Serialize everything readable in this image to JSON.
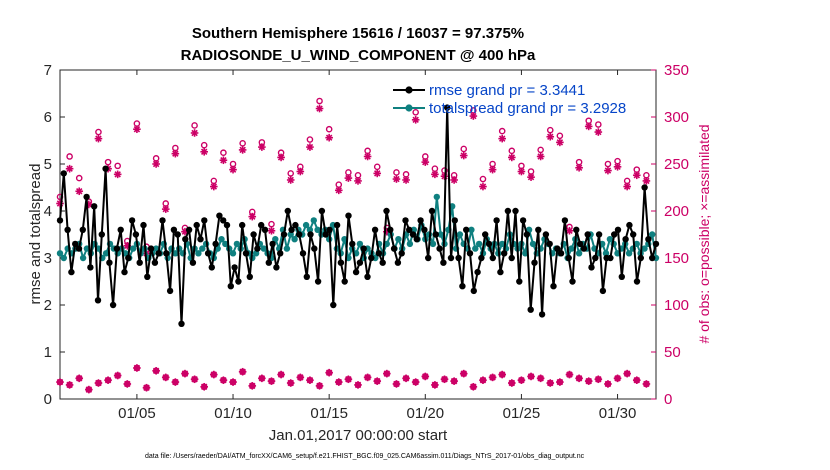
{
  "chart_data": {
    "type": "line",
    "title_line1": "Southern Hemisphere 15616 / 16037 = 97.375%",
    "title_line2": "RADIOSONDE_U_WIND_COMPONENT @ 400 hPa",
    "xlabel": "Jan.01,2017 00:00:00 start",
    "ylabel": "rmse and totalspread",
    "ylabel_right": "# of obs: o=possible; ×=assimilated",
    "x_range": [
      1.0,
      32.0
    ],
    "ylim": [
      0,
      7
    ],
    "ylim_right": [
      0,
      350
    ],
    "x_ticks": [
      5,
      10,
      15,
      20,
      25,
      30
    ],
    "x_tick_labels": [
      "01/05",
      "01/10",
      "01/15",
      "01/20",
      "01/25",
      "01/30"
    ],
    "y_ticks": [
      0,
      1,
      2,
      3,
      4,
      5,
      6,
      7
    ],
    "y_ticks_right": [
      0,
      50,
      100,
      150,
      200,
      250,
      300,
      350
    ],
    "colors": {
      "rmse": "#000000",
      "spread": "#0f8080",
      "obs": "#cc0066",
      "legend_text": "#0645c8"
    },
    "footer": "data file: /Users/raeder/DAI/ATM_forcXX/CAM6_setup/f.e21.FHIST_BGC.f09_025.CAM6assim.011/Diags_NTrS_2017-01/obs_diag_output.nc",
    "series": [
      {
        "name": "rmse grand pr = 3.3441",
        "values": [
          3.8,
          4.8,
          3.6,
          2.7,
          3.3,
          3.2,
          3.6,
          4.3,
          2.8,
          4.1,
          2.1,
          3.5,
          4.9,
          2.9,
          2.0,
          3.2,
          3.6,
          2.7,
          3.0,
          3.8,
          3.5,
          2.9,
          3.7,
          2.6,
          3.2,
          2.9,
          3.1,
          3.8,
          3.1,
          2.3,
          3.6,
          3.5,
          1.6,
          3.4,
          3.6,
          2.9,
          3.7,
          3.4,
          3.8,
          3.1,
          2.8,
          3.3,
          3.9,
          3.8,
          3.7,
          2.4,
          2.8,
          2.5,
          3.7,
          3.1,
          2.6,
          3.5,
          3.2,
          3.7,
          3.6,
          2.9,
          3.3,
          2.8,
          3.1,
          3.5,
          4.0,
          3.6,
          3.7,
          3.5,
          3.1,
          2.6,
          3.5,
          3.2,
          2.5,
          4.0,
          3.5,
          3.6,
          2.0,
          3.7,
          2.9,
          2.5,
          3.9,
          3.3,
          2.7,
          2.9,
          3.2,
          2.6,
          3.0,
          3.6,
          3.1,
          2.9,
          4.0,
          3.6,
          3.2,
          2.9,
          3.1,
          3.8,
          3.6,
          3.5,
          3.4,
          3.8,
          3.6,
          3.0,
          4.0,
          3.5,
          3.2,
          2.9,
          6.2,
          3.0,
          3.8,
          3.0,
          2.4,
          3.6,
          3.1,
          2.3,
          2.7,
          3.0,
          3.5,
          3.3,
          3.0,
          3.8,
          2.7,
          3.1,
          4.0,
          3.0,
          4.0,
          2.5,
          3.8,
          3.5,
          1.9,
          2.9,
          3.6,
          1.8,
          3.5,
          3.3,
          2.4,
          3.2,
          3.1,
          3.8,
          3.0,
          2.5,
          3.6,
          3.3,
          3.2,
          3.5,
          2.8,
          3.0,
          3.5,
          2.3,
          3.0,
          3.0,
          3.5,
          3.6,
          2.6,
          3.4,
          3.7,
          3.5,
          2.5,
          3.0,
          4.5,
          3.4,
          3.0,
          3.3
        ]
      },
      {
        "name": "totalspread grand pr = 3.2928",
        "values": [
          3.1,
          3.0,
          3.2,
          3.1,
          3.2,
          3.3,
          3.0,
          3.2,
          3.1,
          3.3,
          3.2,
          3.0,
          3.1,
          3.3,
          3.2,
          3.1,
          3.2,
          3.1,
          3.0,
          3.2,
          3.3,
          3.1,
          3.2,
          3.0,
          3.1,
          3.2,
          3.1,
          3.3,
          3.0,
          3.2,
          3.1,
          3.2,
          3.1,
          3.3,
          3.0,
          3.2,
          3.1,
          3.2,
          3.3,
          3.1,
          3.0,
          3.2,
          3.4,
          3.3,
          3.2,
          3.1,
          3.3,
          3.2,
          3.4,
          3.1,
          3.0,
          3.1,
          3.3,
          3.2,
          3.1,
          3.0,
          3.4,
          3.2,
          3.6,
          3.2,
          3.5,
          3.4,
          3.6,
          3.5,
          3.7,
          3.6,
          3.8,
          3.6,
          3.5,
          3.6,
          3.4,
          3.7,
          3.2,
          3.1,
          3.4,
          3.0,
          3.2,
          3.1,
          3.3,
          3.0,
          3.2,
          3.1,
          3.0,
          3.3,
          3.1,
          3.3,
          3.5,
          3.2,
          3.4,
          3.2,
          3.5,
          3.3,
          3.6,
          3.4,
          3.7,
          3.4,
          3.5,
          3.3,
          4.3,
          3.5,
          3.3,
          3.6,
          4.1,
          3.2,
          3.5,
          3.3,
          3.2,
          3.6,
          3.2,
          3.3,
          3.1,
          3.4,
          3.2,
          3.3,
          3.1,
          3.3,
          3.2,
          3.5,
          3.3,
          3.2,
          3.3,
          3.1,
          3.6,
          3.3,
          3.1,
          3.2,
          3.4,
          3.3,
          3.1,
          3.2,
          3.1,
          3.3,
          3.0,
          3.2,
          3.4,
          3.1,
          3.3,
          3.2,
          3.5,
          3.2,
          3.1,
          3.3,
          3.1,
          3.4,
          3.3,
          3.1,
          3.2,
          3.3,
          3.1,
          3.2,
          3.3,
          3.1,
          3.2,
          3.3,
          3.5,
          3.0
        ]
      }
    ],
    "obs_times": [
      1.0,
      1.5,
      2.0,
      2.5,
      3.0,
      3.5,
      4.0,
      4.5,
      5.0,
      5.5,
      6.0,
      6.5,
      7.0,
      7.5,
      8.0,
      8.5,
      9.0,
      9.5,
      10.0,
      10.5,
      11.0,
      11.5,
      12.0,
      12.5,
      13.0,
      13.5,
      14.0,
      14.5,
      15.0,
      15.5,
      16.0,
      16.5,
      17.0,
      17.5,
      18.0,
      18.5,
      19.0,
      19.5,
      20.0,
      20.5,
      21.0,
      21.5,
      22.0,
      22.5,
      23.0,
      23.5,
      24.0,
      24.5,
      25.0,
      25.5,
      26.0,
      26.5,
      27.0,
      27.5,
      28.0,
      28.5,
      29.0,
      29.5,
      30.0,
      30.5,
      31.0,
      31.5
    ],
    "obs_possible_00z": [
      215,
      258,
      235,
      210,
      284,
      252,
      248,
      168,
      293,
      162,
      256,
      208,
      267,
      182,
      291,
      270,
      232,
      262,
      250,
      272,
      199,
      273,
      186,
      262,
      240,
      247,
      276,
      317,
      287,
      228,
      241,
      238,
      264,
      247,
      182,
      241,
      239,
      305,
      258,
      245,
      243,
      238,
      266,
      307,
      234,
      250,
      285,
      264,
      248,
      242,
      265,
      286,
      280,
      183,
      252,
      296,
      292,
      250,
      253,
      232,
      244,
      238
    ],
    "obs_assimilated_00z": [
      208,
      245,
      221,
      207,
      277,
      245,
      239,
      163,
      287,
      155,
      250,
      202,
      261,
      178,
      283,
      263,
      226,
      254,
      244,
      265,
      194,
      268,
      179,
      257,
      233,
      242,
      268,
      309,
      278,
      222,
      235,
      232,
      258,
      240,
      178,
      234,
      233,
      297,
      252,
      239,
      237,
      233,
      259,
      301,
      226,
      244,
      277,
      257,
      242,
      236,
      258,
      279,
      273,
      179,
      246,
      290,
      284,
      243,
      247,
      226,
      238,
      232
    ],
    "obs_possible_12z": [
      18,
      15,
      22,
      10,
      17,
      20,
      25,
      16,
      33,
      12,
      30,
      23,
      18,
      27,
      21,
      13,
      26,
      20,
      18,
      29,
      14,
      22,
      19,
      26,
      17,
      23,
      20,
      14,
      28,
      18,
      21,
      15,
      23,
      19,
      27,
      16,
      22,
      18,
      24,
      15,
      21,
      19,
      27,
      13,
      20,
      23,
      26,
      17,
      20,
      24,
      22,
      17,
      18,
      26,
      22,
      19,
      21,
      16,
      22,
      27,
      20,
      16
    ],
    "obs_assimilated_12z": [
      18,
      15,
      22,
      10,
      17,
      20,
      25,
      16,
      33,
      12,
      30,
      23,
      18,
      27,
      21,
      13,
      26,
      20,
      18,
      29,
      14,
      22,
      19,
      26,
      17,
      23,
      20,
      14,
      28,
      18,
      21,
      15,
      23,
      19,
      27,
      16,
      22,
      18,
      24,
      15,
      21,
      19,
      27,
      13,
      20,
      23,
      26,
      17,
      20,
      24,
      22,
      17,
      18,
      26,
      22,
      19,
      21,
      16,
      22,
      27,
      20,
      16
    ]
  }
}
